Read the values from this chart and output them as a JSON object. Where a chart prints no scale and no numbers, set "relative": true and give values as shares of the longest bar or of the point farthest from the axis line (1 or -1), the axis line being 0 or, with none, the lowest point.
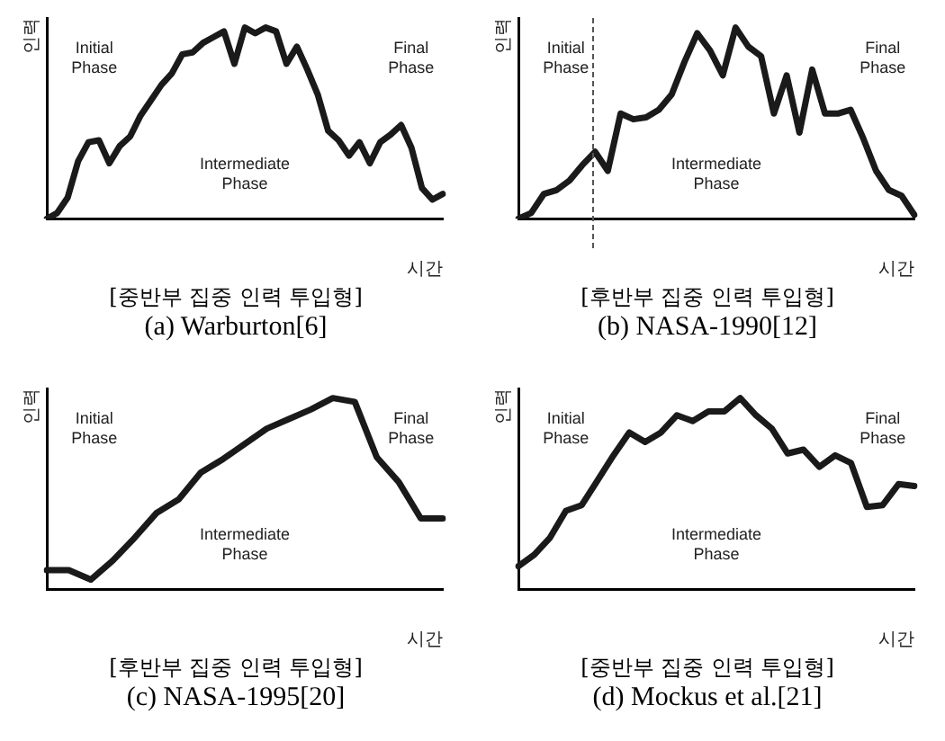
{
  "chart_data": [
    {
      "type": "line",
      "title": "(a) Warburton[6]",
      "subtitle": "[중반부 집중 인력 투입형]",
      "xlabel": "시간",
      "ylabel": "인력",
      "relative": true,
      "marker": "none",
      "legend": false,
      "grid": false,
      "annotations": [
        "Initial Phase",
        "Intermediate Phase",
        "Final Phase"
      ],
      "categories": [
        null,
        null,
        null,
        null,
        null,
        null,
        null,
        null,
        null,
        null,
        null,
        null,
        null,
        null,
        null,
        null,
        null,
        null,
        null,
        null,
        null,
        null,
        null,
        null,
        null,
        null,
        null,
        null,
        null,
        null,
        null,
        null,
        null,
        null,
        null,
        null,
        null,
        null,
        null
      ],
      "series": [
        {
          "color": "#1a1a1a",
          "values": [
            0,
            0.03,
            0.11,
            0.3,
            0.4,
            0.41,
            0.29,
            0.38,
            0.43,
            0.54,
            0.62,
            0.7,
            0.76,
            0.86,
            0.87,
            0.92,
            0.95,
            0.98,
            0.81,
            1,
            0.97,
            1,
            0.98,
            0.81,
            0.9,
            0.78,
            0.65,
            0.46,
            0.41,
            0.33,
            0.4,
            0.29,
            0.4,
            0.44,
            0.49,
            0.37,
            0.16,
            0.1,
            0.13
          ]
        }
      ]
    },
    {
      "type": "line",
      "title": "(b) NASA-1990[12]",
      "subtitle": "[후반부 집중 인력 투입형]",
      "xlabel": "시간",
      "ylabel": "인력",
      "relative": true,
      "marker": "none",
      "legend": false,
      "grid": false,
      "annotations": [
        "Initial Phase",
        "Intermediate Phase",
        "Final Phase"
      ],
      "categories": [
        null,
        null,
        null,
        null,
        null,
        null,
        null,
        null,
        null,
        null,
        null,
        null,
        null,
        null,
        null,
        null,
        null,
        null,
        null,
        null,
        null,
        null,
        null,
        null,
        null,
        null,
        null,
        null,
        null,
        null,
        null,
        null
      ],
      "series": [
        {
          "color": "#1a1a1a",
          "values": [
            0,
            0.03,
            0.13,
            0.15,
            0.2,
            0.28,
            0.35,
            0.25,
            0.55,
            0.52,
            0.53,
            0.57,
            0.65,
            0.82,
            0.97,
            0.88,
            0.75,
            1,
            0.9,
            0.85,
            0.55,
            0.75,
            0.45,
            0.78,
            0.55,
            0.55,
            0.57,
            0.42,
            0.25,
            0.15,
            0.12,
            0.02
          ]
        }
      ]
    },
    {
      "type": "line",
      "title": "(c) NASA-1995[20]",
      "subtitle": "[후반부 집중 인력 투입형]",
      "xlabel": "시간",
      "ylabel": "인력",
      "relative": true,
      "marker": "none",
      "legend": false,
      "grid": false,
      "annotations": [
        "Initial Phase",
        "Intermediate Phase",
        "Final Phase"
      ],
      "categories": [
        null,
        null,
        null,
        null,
        null,
        null,
        null,
        null,
        null,
        null,
        null,
        null,
        null,
        null,
        null,
        null,
        null,
        null,
        null
      ],
      "series": [
        {
          "color": "#1a1a1a",
          "values": [
            0.1,
            0.1,
            0.05,
            0.15,
            0.27,
            0.4,
            0.47,
            0.61,
            0.68,
            0.76,
            0.84,
            0.89,
            0.94,
            1,
            0.98,
            0.69,
            0.56,
            0.37,
            0.37
          ]
        }
      ]
    },
    {
      "type": "line",
      "title": "(d) Mockus et al.[21]",
      "subtitle": "[중반부 집중 인력 투입형]",
      "xlabel": "시간",
      "ylabel": "인력",
      "relative": true,
      "marker": "none",
      "legend": false,
      "grid": false,
      "annotations": [
        "Initial Phase",
        "Intermediate Phase",
        "Final Phase"
      ],
      "categories": [
        null,
        null,
        null,
        null,
        null,
        null,
        null,
        null,
        null,
        null,
        null,
        null,
        null,
        null,
        null,
        null,
        null,
        null,
        null,
        null,
        null,
        null,
        null,
        null,
        null,
        null
      ],
      "series": [
        {
          "color": "#1a1a1a",
          "values": [
            0.12,
            0.18,
            0.27,
            0.41,
            0.44,
            0.57,
            0.7,
            0.82,
            0.77,
            0.82,
            0.91,
            0.88,
            0.93,
            0.93,
            1,
            0.91,
            0.84,
            0.71,
            0.73,
            0.64,
            0.7,
            0.66,
            0.43,
            0.44,
            0.55,
            0.54
          ]
        }
      ]
    }
  ]
}
